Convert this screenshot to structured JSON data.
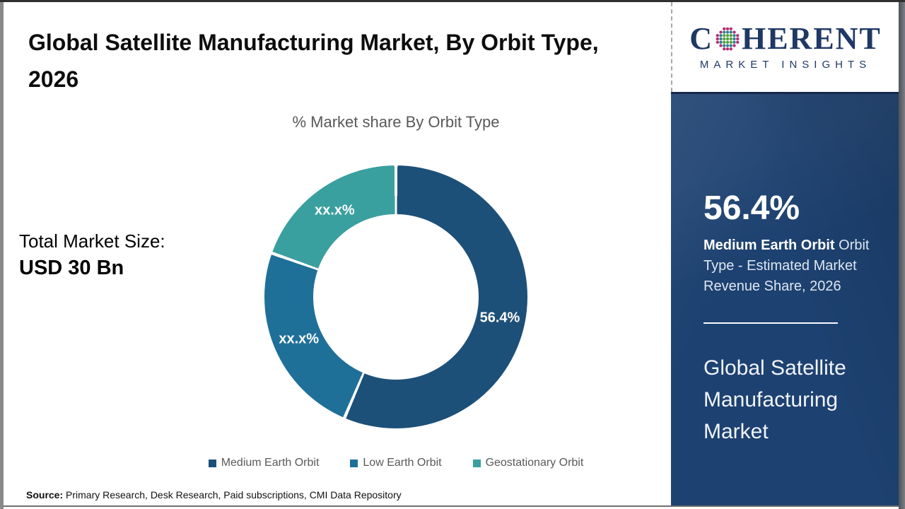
{
  "page": {
    "title": "Global Satellite Manufacturing Market, By Orbit Type, 2026",
    "source_label": "Source:",
    "source_text": " Primary Research, Desk Research, Paid subscriptions, CMI Data Repository"
  },
  "left": {
    "total_market_size_label": "Total Market Size:",
    "total_market_size_value": "USD 30 Bn"
  },
  "chart_data": {
    "type": "pie",
    "subtype": "donut",
    "title": "% Market share By Orbit Type",
    "categories": [
      "Medium Earth Orbit",
      "Low Earth Orbit",
      "Geostationary Orbit"
    ],
    "values": [
      56.4,
      24.0,
      19.6
    ],
    "slice_labels": [
      "56.4%",
      "xx.x%",
      "xx.x%"
    ],
    "colors": [
      "#1d5078",
      "#1f7099",
      "#3a9f9f"
    ],
    "legend_position": "bottom",
    "start_angle_deg": 0,
    "direction": "clockwise"
  },
  "sidebar": {
    "logo": {
      "word_start": "C",
      "word_end": "HERENT",
      "subtitle": "MARKET INSIGHTS",
      "navy": "#1f3864",
      "dot_colors": {
        "inner": "#58a13f",
        "middle": "#2e7f93",
        "outer": "#b42e72"
      }
    },
    "stat_value": "56.4%",
    "stat_desc_bold": "Medium Earth Orbit",
    "stat_desc_rest": " Orbit Type - Estimated Market Revenue Share, 2026",
    "panel_title": "Global Satellite Manufacturing Market",
    "panel_color": "#1d4170"
  }
}
